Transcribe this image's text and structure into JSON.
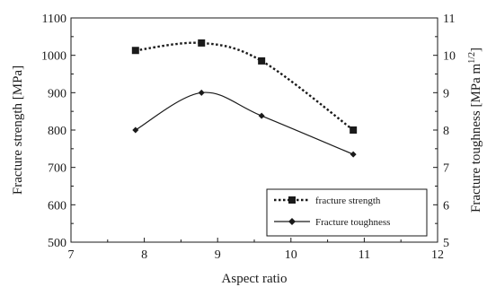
{
  "chart_data": {
    "type": "line",
    "xlabel": "Aspect ratio",
    "ylabel_left": "Fracture strength [MPa]",
    "ylabel_right": "Fracture toughness [MPa m",
    "ylabel_right_exp": "1/2",
    "ylabel_right_end": "]",
    "xlim": [
      7,
      12
    ],
    "ylim_left": [
      500,
      1100
    ],
    "ylim_right": [
      5,
      11
    ],
    "x_ticks": [
      "7",
      "8",
      "9",
      "10",
      "11",
      "12"
    ],
    "y_left_ticks": [
      "500",
      "600",
      "700",
      "800",
      "900",
      "1000",
      "1100"
    ],
    "y_right_ticks": [
      "5",
      "6",
      "7",
      "8",
      "9",
      "10",
      "11"
    ],
    "grid": false,
    "legend_position": "bottom-right",
    "series": [
      {
        "name": "fracture strength",
        "axis": "left",
        "marker": "square",
        "line_style": "dotted",
        "color": "#1a1a1a",
        "points": [
          [
            7.88,
            1013
          ],
          [
            8.78,
            1033
          ],
          [
            9.6,
            985
          ],
          [
            10.85,
            800
          ]
        ]
      },
      {
        "name": "Fracture toughness",
        "axis": "right",
        "marker": "diamond",
        "line_style": "solid",
        "color": "#1a1a1a",
        "points": [
          [
            7.88,
            8.0
          ],
          [
            8.78,
            9.0
          ],
          [
            9.6,
            8.38
          ],
          [
            10.85,
            7.35
          ]
        ]
      }
    ]
  }
}
